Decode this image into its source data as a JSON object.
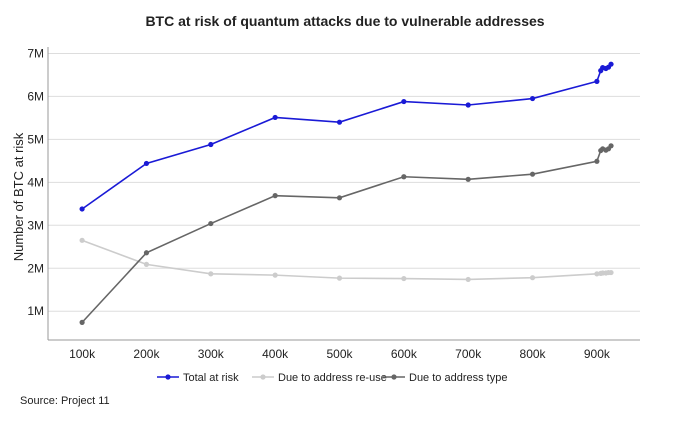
{
  "chart_data": {
    "type": "line",
    "title": "BTC at risk of quantum attacks due to vulnerable addresses",
    "xlabel": "",
    "ylabel": "Number of BTC at risk",
    "x_ticks": [
      100000,
      200000,
      300000,
      400000,
      500000,
      600000,
      700000,
      800000,
      900000
    ],
    "x_tick_labels": [
      "100k",
      "200k",
      "300k",
      "400k",
      "500k",
      "600k",
      "700k",
      "800k",
      "900k"
    ],
    "y_ticks": [
      1000000,
      2000000,
      3000000,
      4000000,
      5000000,
      6000000,
      7000000
    ],
    "y_tick_labels": [
      "1M",
      "2M",
      "3M",
      "4M",
      "5M",
      "6M",
      "7M"
    ],
    "xlim": [
      47000,
      967000
    ],
    "ylim": [
      330000,
      7150000
    ],
    "grid": "horizontal",
    "legend_position": "bottom",
    "x": [
      100000,
      200000,
      300000,
      400000,
      500000,
      600000,
      700000,
      800000,
      900000,
      906000,
      909000,
      914000,
      918000,
      922000
    ],
    "series": [
      {
        "name": "Total at risk",
        "color": "#1a1ad6",
        "values": [
          3380000,
          4440000,
          4880000,
          5510000,
          5400000,
          5880000,
          5800000,
          5950000,
          6350000,
          6600000,
          6670000,
          6650000,
          6680000,
          6750000
        ]
      },
      {
        "name": "Due to address re-use",
        "color": "#cccccc",
        "values": [
          2650000,
          2090000,
          1870000,
          1840000,
          1770000,
          1760000,
          1740000,
          1780000,
          1870000,
          1880000,
          1890000,
          1890000,
          1900000,
          1900000
        ]
      },
      {
        "name": "Due to address type",
        "color": "#666666",
        "values": [
          740000,
          2360000,
          3040000,
          3690000,
          3640000,
          4130000,
          4070000,
          4190000,
          4490000,
          4740000,
          4780000,
          4750000,
          4780000,
          4850000
        ]
      }
    ],
    "source": "Source: Project 11"
  }
}
